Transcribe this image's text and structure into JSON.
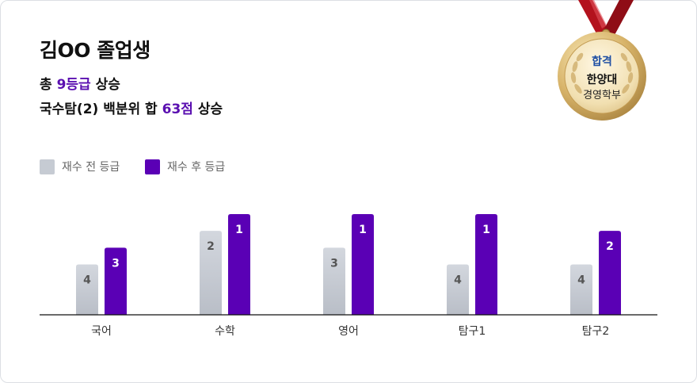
{
  "headline": {
    "name": "김OO 졸업생",
    "line1_prefix": "총 ",
    "line1_highlight": "9등급",
    "line1_suffix": " 상승",
    "line2_prefix": "국수탐(2) 백분위 합 ",
    "line2_highlight": "63점",
    "line2_suffix": " 상승"
  },
  "badge": {
    "top": "합격",
    "middle": "한양대",
    "bottom": "경영학부"
  },
  "colors": {
    "before": "#c6cbd3",
    "after": "#5a00b5",
    "accent": "#5a0fb0"
  },
  "chart_data": {
    "type": "bar",
    "categories": [
      "국어",
      "수학",
      "영어",
      "탐구1",
      "탐구2"
    ],
    "series": [
      {
        "name": "재수 전 등급",
        "values": [
          4,
          2,
          3,
          4,
          4
        ]
      },
      {
        "name": "재수 후 등급",
        "values": [
          3,
          1,
          1,
          1,
          2
        ]
      }
    ],
    "legend": "top-left",
    "grid": false
  }
}
